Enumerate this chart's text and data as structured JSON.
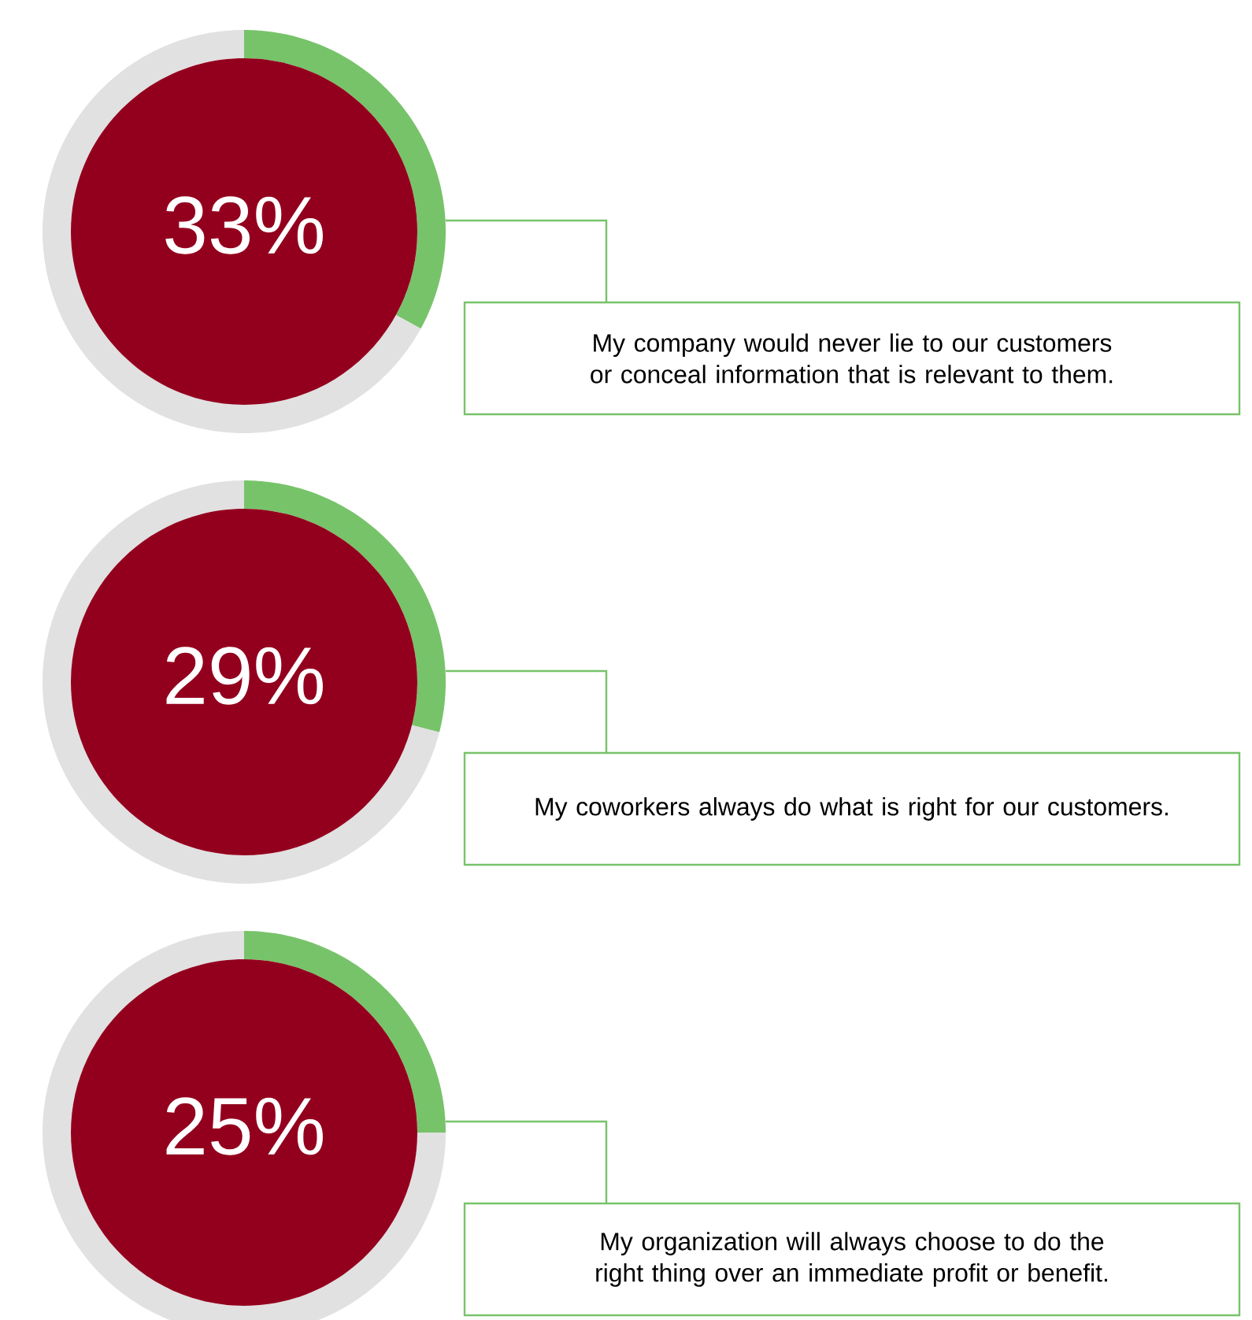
{
  "chart_data": [
    {
      "type": "donut",
      "categories": [
        null,
        null
      ],
      "values": [
        33,
        67
      ],
      "colors": [
        "#77c36a",
        "#e1e1e1"
      ],
      "value_labels": [
        "33%",
        null
      ],
      "annotations": [
        "My company would never lie to our customers or conceal information that is relevant to them."
      ]
    },
    {
      "type": "donut",
      "categories": [
        null,
        null
      ],
      "values": [
        29,
        71
      ],
      "colors": [
        "#77c36a",
        "#e1e1e1"
      ],
      "value_labels": [
        "29%",
        null
      ],
      "annotations": [
        "My coworkers always do what is right for our customers."
      ]
    },
    {
      "type": "donut",
      "categories": [
        null,
        null
      ],
      "values": [
        25,
        75
      ],
      "colors": [
        "#77c36a",
        "#e1e1e1"
      ],
      "value_labels": [
        "25%",
        null
      ],
      "annotations": [
        "My organization will always choose to do the right thing over an immediate profit or benefit."
      ]
    }
  ]
}
